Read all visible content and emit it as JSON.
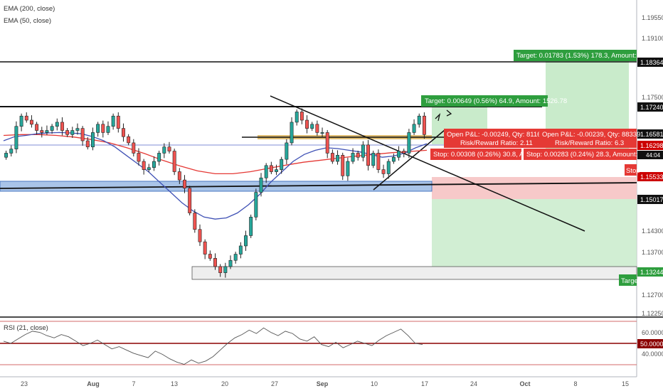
{
  "indicators": {
    "ema200_label": "EMA (200, close)",
    "ema50_label": "EMA (50, close)",
    "rsi_label": "RSI (21, close)"
  },
  "price_axis": {
    "ticks": [
      "1.19550",
      "1.19100",
      "1.18364",
      "1.17500",
      "1.17240",
      "1.16581",
      "1.16298",
      "1.15533",
      "1.15017",
      "1.14300",
      "1.13700",
      "1.13244",
      "1.12700",
      "1.12250"
    ],
    "last_price_tag": "44:04"
  },
  "rsi_axis": {
    "ticks": [
      "60.0000",
      "50.0000",
      "40.0000"
    ],
    "highlight": "50.0000"
  },
  "time_axis": {
    "labels": [
      "23",
      "Aug",
      "7",
      "13",
      "20",
      "27",
      "Sep",
      "10",
      "17",
      "24",
      "Oct",
      "8",
      "15"
    ]
  },
  "trade_boxes": {
    "big_target": "Target: 0.01783 (1.53%) 178.3, Amount: ",
    "small_target": "Target: 0.00649 (0.56%) 64.9, Amount: 1526.78",
    "pnl1_line1": "Open P&L: -0.00249, Qty: 8116",
    "pnl1_line2": "Risk/Reward Ratio: 2.11",
    "stop1": "Stop: 0.00308 (0.26%) 30.8, A",
    "pnl2_line1": "Open P&L: -0.00239, Qty: 88339",
    "pnl2_line2": "Risk/Reward Ratio: 6.3",
    "stop2": "Stop: 0.00283 (0.24%) 28.3, Amount:",
    "stop_cut": "Stop",
    "target_cut": "Target"
  },
  "chart_data": {
    "type": "candlestick",
    "title": "",
    "ylim": [
      1.12,
      1.198
    ],
    "x": [
      "23",
      "Aug",
      "7",
      "13",
      "20",
      "27",
      "Sep",
      "10",
      "17",
      "24",
      "Oct",
      "8",
      "15"
    ],
    "levels": [
      1.18364,
      1.1724,
      1.16581,
      1.16298,
      1.15533,
      1.15017,
      1.13244
    ],
    "closes": [
      1.1615,
      1.1625,
      1.168,
      1.1705,
      1.1695,
      1.1685,
      1.167,
      1.1665,
      1.167,
      1.168,
      1.169,
      1.167,
      1.166,
      1.167,
      1.1675,
      1.1645,
      1.163,
      1.1665,
      1.1685,
      1.1665,
      1.168,
      1.1705,
      1.1675,
      1.1655,
      1.164,
      1.1615,
      1.1595,
      1.1575,
      1.158,
      1.1595,
      1.1615,
      1.163,
      1.162,
      1.157,
      1.155,
      1.153,
      1.147,
      1.143,
      1.14,
      1.137,
      1.136,
      1.134,
      1.1325,
      1.134,
      1.1355,
      1.137,
      1.139,
      1.1415,
      1.146,
      1.152,
      1.1555,
      1.1585,
      1.157,
      1.1575,
      1.16,
      1.164,
      1.169,
      1.1715,
      1.1695,
      1.1675,
      1.1685,
      1.1665,
      1.1665,
      1.1615,
      1.1595,
      1.161,
      1.156,
      1.1595,
      1.1615,
      1.1605,
      1.1635,
      1.1585,
      1.1615,
      1.1575,
      1.1565,
      1.1595,
      1.1605,
      1.162,
      1.1615,
      1.1665,
      1.1685,
      1.1705,
      1.166
    ],
    "ema50": [
      1.1645,
      1.1655,
      1.1658,
      1.1662,
      1.1664,
      1.1665,
      1.1664,
      1.1662,
      1.1655,
      1.1645,
      1.163,
      1.161,
      1.159,
      1.157,
      1.1545,
      1.152,
      1.1495,
      1.1475,
      1.146,
      1.1455,
      1.1458,
      1.147,
      1.149,
      1.1515,
      1.1545,
      1.157,
      1.1595,
      1.1612,
      1.1622,
      1.1628,
      1.1626,
      1.1622,
      1.1618,
      1.1612,
      1.1605,
      1.1608,
      1.1615,
      1.1628,
      1.1638
    ],
    "ema200": [
      1.1658,
      1.166,
      1.166,
      1.1658,
      1.1654,
      1.1648,
      1.164,
      1.1628,
      1.1614,
      1.1598,
      1.1584,
      1.1572,
      1.1565,
      1.1565,
      1.157,
      1.1578,
      1.1586,
      1.1593,
      1.1598,
      1.1603,
      1.1608,
      1.1612,
      1.1616,
      1.1619,
      1.1622
    ],
    "rsi": [
      52,
      50,
      54,
      58,
      61,
      60,
      57,
      55,
      58,
      56,
      52,
      48,
      50,
      53,
      49,
      45,
      47,
      44,
      41,
      39,
      37,
      43,
      40,
      36,
      33,
      31,
      35,
      32,
      34,
      38,
      44,
      50,
      55,
      58,
      62,
      59,
      64,
      60,
      57,
      61,
      59,
      54,
      52,
      56,
      49,
      47,
      51,
      46,
      49,
      52,
      50,
      48,
      53,
      57,
      60,
      63,
      57,
      50,
      49
    ],
    "rsi_levels": [
      70,
      50,
      30
    ]
  }
}
